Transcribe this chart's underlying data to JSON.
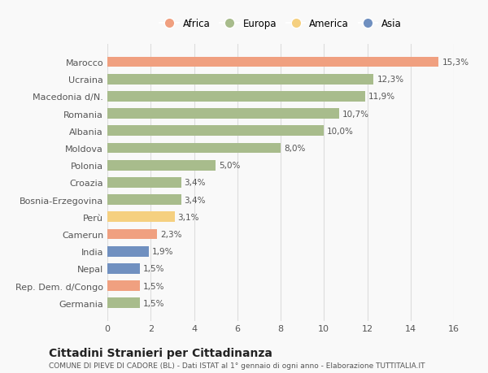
{
  "categories": [
    "Marocco",
    "Ucraina",
    "Macedonia d/N.",
    "Romania",
    "Albania",
    "Moldova",
    "Polonia",
    "Croazia",
    "Bosnia-Erzegovina",
    "Perù",
    "Camerun",
    "India",
    "Nepal",
    "Rep. Dem. d/Congo",
    "Germania"
  ],
  "values": [
    15.3,
    12.3,
    11.9,
    10.7,
    10.0,
    8.0,
    5.0,
    3.4,
    3.4,
    3.1,
    2.3,
    1.9,
    1.5,
    1.5,
    1.5
  ],
  "labels": [
    "15,3%",
    "12,3%",
    "11,9%",
    "10,7%",
    "10,0%",
    "8,0%",
    "5,0%",
    "3,4%",
    "3,4%",
    "3,1%",
    "2,3%",
    "1,9%",
    "1,5%",
    "1,5%",
    "1,5%"
  ],
  "continents": [
    "Africa",
    "Europa",
    "Europa",
    "Europa",
    "Europa",
    "Europa",
    "Europa",
    "Europa",
    "Europa",
    "America",
    "Africa",
    "Asia",
    "Asia",
    "Africa",
    "Europa"
  ],
  "colors": {
    "Africa": "#F0A080",
    "Europa": "#A8BC8C",
    "America": "#F5D080",
    "Asia": "#7090C0"
  },
  "legend_order": [
    "Africa",
    "Europa",
    "America",
    "Asia"
  ],
  "title": "Cittadini Stranieri per Cittadinanza",
  "subtitle": "COMUNE DI PIEVE DI CADORE (BL) - Dati ISTAT al 1° gennaio di ogni anno - Elaborazione TUTTITALIA.IT",
  "xlim": [
    0,
    16
  ],
  "xticks": [
    0,
    2,
    4,
    6,
    8,
    10,
    12,
    14,
    16
  ],
  "bg_color": "#f9f9f9",
  "grid_color": "#dddddd"
}
